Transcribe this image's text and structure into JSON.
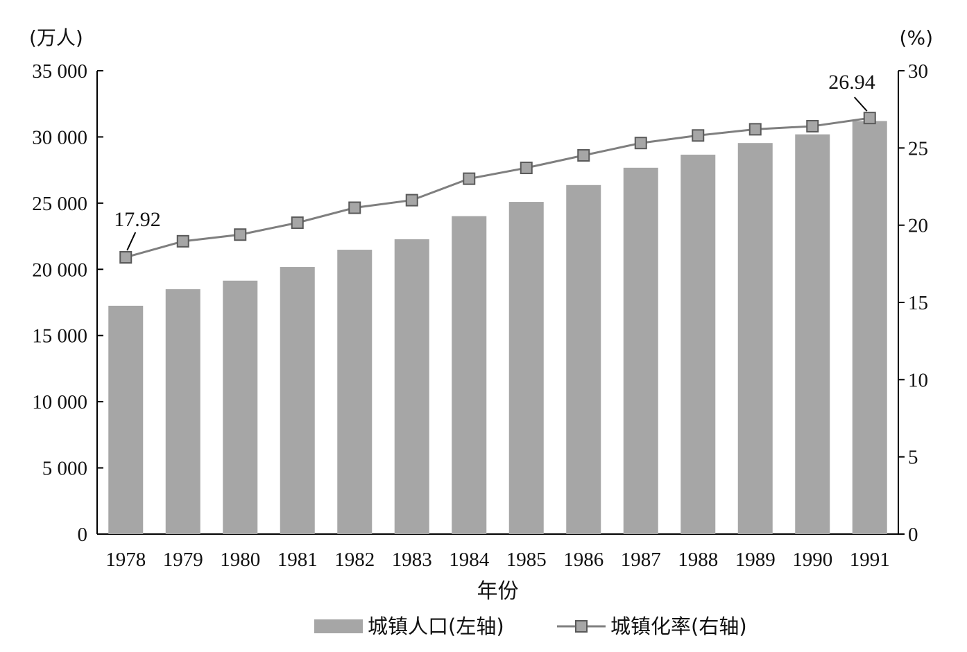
{
  "chart_data": {
    "type": "bar",
    "categories": [
      "1978",
      "1979",
      "1980",
      "1981",
      "1982",
      "1983",
      "1984",
      "1985",
      "1986",
      "1987",
      "1988",
      "1989",
      "1990",
      "1991"
    ],
    "series": [
      {
        "name": "城镇人口(左轴)",
        "type": "bar",
        "axis": "left",
        "values": [
          17245,
          18495,
          19140,
          20171,
          21480,
          22274,
          24017,
          25094,
          26366,
          27674,
          28661,
          29540,
          30195,
          31203
        ]
      },
      {
        "name": "城镇化率(右轴)",
        "type": "line",
        "axis": "right",
        "values": [
          17.92,
          18.96,
          19.39,
          20.16,
          21.13,
          21.62,
          23.01,
          23.71,
          24.52,
          25.32,
          25.81,
          26.21,
          26.41,
          26.94
        ]
      }
    ],
    "y_left_unit": "(万人)",
    "y_right_unit": "(%)",
    "xlabel": "年份",
    "ylim_left": [
      0,
      35000
    ],
    "ylim_right": [
      0,
      30
    ],
    "y_left_ticks": [
      0,
      5000,
      10000,
      15000,
      20000,
      25000,
      30000,
      35000
    ],
    "y_left_tick_labels": [
      "0",
      "5 000",
      "10 000",
      "15 000",
      "20 000",
      "25 000",
      "30 000",
      "35 000"
    ],
    "y_right_ticks": [
      0,
      5,
      10,
      15,
      20,
      25,
      30
    ],
    "y_right_tick_labels": [
      "0",
      "5",
      "10",
      "15",
      "20",
      "25",
      "30"
    ],
    "annotations": [
      {
        "series": 1,
        "index": 0,
        "text": "17.92"
      },
      {
        "series": 1,
        "index": 13,
        "text": "26.94"
      }
    ],
    "grid": false,
    "legend_position": "bottom",
    "colors": {
      "bar": "#a6a6a6",
      "line": "#7f7f7f",
      "marker_fill": "#a6a6a6",
      "marker_stroke": "#595959",
      "axis": "#000000"
    }
  }
}
